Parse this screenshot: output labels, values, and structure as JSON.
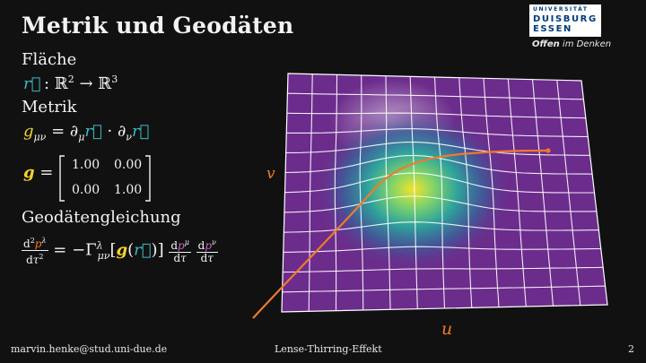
{
  "slide": {
    "title": "Metrik und Geodäten",
    "section_surface": "Fläche",
    "surface_map": "r⃗ : ℝ² → ℝ³",
    "section_metric": "Metrik",
    "metric_def": "g_μν = ∂_μ r⃗ · ∂_ν r⃗",
    "metric_symbol": "g =",
    "matrix": [
      [
        "1.00",
        "0.00"
      ],
      [
        "0.00",
        "1.00"
      ]
    ],
    "section_geodesic": "Geodätengleichung",
    "axis_u": "u",
    "axis_v": "v"
  },
  "logo": {
    "line1": "UNIVERSITÄT",
    "line2": "DUISBURG",
    "line3": "ESSEN",
    "claim_bold": "Offen",
    "claim_rest": " im Denken"
  },
  "footer": {
    "email": "marvin.henke@stud.uni-due.de",
    "talk": "Lense-Thirring-Effekt",
    "page": "2"
  },
  "colors": {
    "background": "#111111",
    "grid_fill": "#6c2c8c",
    "geodesic": "#f07a2a",
    "peak": "#f3e32a",
    "teal": "#3cb9c0"
  }
}
